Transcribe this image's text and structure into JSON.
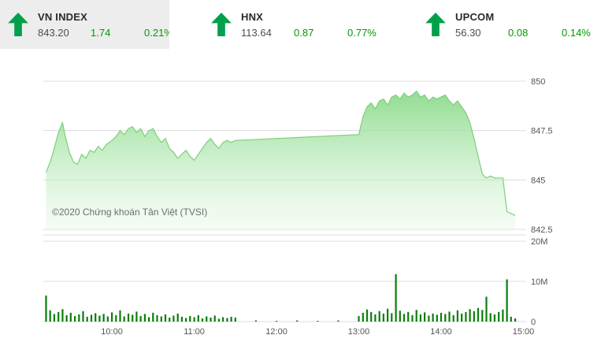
{
  "tickers": [
    {
      "name": "VN INDEX",
      "value": "843.20",
      "change": "1.74",
      "percent": "0.21%"
    },
    {
      "name": "HNX",
      "value": "113.64",
      "change": "0.87",
      "percent": "0.77%"
    },
    {
      "name": "UPCOM",
      "value": "56.30",
      "change": "0.08",
      "percent": "0.14%"
    }
  ],
  "chart": {
    "copyright": "©2020 Chứng khoán Tân Việt (TVSI)"
  },
  "colors": {
    "up_arrow": "#00a04a",
    "change_text": "#009900",
    "value_text": "#4d4d4d",
    "ticker_bg": "#ededed",
    "grid": "#dcdcdc",
    "axis_text": "#555555",
    "area_line": "#7ccf7c",
    "area_fill_top": "#84d884",
    "area_fill_bottom": "#e9f9e9",
    "volume_bar": "#0b7d0b"
  },
  "chart_data": {
    "type": "area",
    "title": "",
    "xlabel": "",
    "ylabel": "",
    "legend": "none",
    "grid": "horizontal",
    "x_domain": [
      "09:10",
      "15:02"
    ],
    "x_ticks": [
      "10:00",
      "11:00",
      "12:00",
      "13:00",
      "14:00",
      "15:00"
    ],
    "price": {
      "name": "VN INDEX intraday",
      "ylim": [
        842.5,
        850
      ],
      "y_ticks": [
        [
          850,
          "850"
        ],
        [
          847.5,
          "847.5"
        ],
        [
          845,
          "845"
        ],
        [
          842.5,
          "842.5"
        ]
      ],
      "points": [
        [
          "09:12",
          845.4
        ],
        [
          "09:15",
          845.9
        ],
        [
          "09:18",
          846.6
        ],
        [
          "09:21",
          847.4
        ],
        [
          "09:24",
          847.9
        ],
        [
          "09:26",
          847.2
        ],
        [
          "09:29",
          846.4
        ],
        [
          "09:32",
          845.9
        ],
        [
          "09:35",
          845.8
        ],
        [
          "09:38",
          846.3
        ],
        [
          "09:41",
          846.1
        ],
        [
          "09:44",
          846.5
        ],
        [
          "09:47",
          846.4
        ],
        [
          "09:50",
          846.7
        ],
        [
          "09:53",
          846.5
        ],
        [
          "09:56",
          846.8
        ],
        [
          "10:00",
          847.0
        ],
        [
          "10:03",
          847.2
        ],
        [
          "10:06",
          847.5
        ],
        [
          "10:09",
          847.3
        ],
        [
          "10:12",
          847.6
        ],
        [
          "10:15",
          847.7
        ],
        [
          "10:18",
          847.4
        ],
        [
          "10:21",
          847.6
        ],
        [
          "10:24",
          847.2
        ],
        [
          "10:27",
          847.5
        ],
        [
          "10:30",
          847.6
        ],
        [
          "10:33",
          847.2
        ],
        [
          "10:36",
          846.9
        ],
        [
          "10:39",
          847.1
        ],
        [
          "10:42",
          846.6
        ],
        [
          "10:45",
          846.4
        ],
        [
          "10:48",
          846.1
        ],
        [
          "10:51",
          846.3
        ],
        [
          "10:54",
          846.5
        ],
        [
          "10:57",
          846.2
        ],
        [
          "11:00",
          846.0
        ],
        [
          "11:03",
          846.3
        ],
        [
          "11:06",
          846.6
        ],
        [
          "11:09",
          846.9
        ],
        [
          "11:12",
          847.1
        ],
        [
          "11:15",
          846.8
        ],
        [
          "11:18",
          846.6
        ],
        [
          "11:21",
          846.9
        ],
        [
          "11:24",
          847.0
        ],
        [
          "11:27",
          846.9
        ],
        [
          "11:30",
          847.0
        ],
        [
          "12:00",
          847.1
        ],
        [
          "12:30",
          847.2
        ],
        [
          "13:00",
          847.3
        ],
        [
          "13:03",
          848.2
        ],
        [
          "13:06",
          848.7
        ],
        [
          "13:09",
          848.9
        ],
        [
          "13:12",
          848.6
        ],
        [
          "13:15",
          849.0
        ],
        [
          "13:18",
          849.1
        ],
        [
          "13:21",
          848.8
        ],
        [
          "13:24",
          849.2
        ],
        [
          "13:27",
          849.3
        ],
        [
          "13:30",
          849.1
        ],
        [
          "13:33",
          849.4
        ],
        [
          "13:36",
          849.2
        ],
        [
          "13:39",
          849.3
        ],
        [
          "13:42",
          849.5
        ],
        [
          "13:45",
          849.2
        ],
        [
          "13:48",
          849.3
        ],
        [
          "13:51",
          849.0
        ],
        [
          "13:54",
          849.2
        ],
        [
          "13:57",
          849.1
        ],
        [
          "14:00",
          849.2
        ],
        [
          "14:03",
          849.3
        ],
        [
          "14:06",
          849.0
        ],
        [
          "14:09",
          848.8
        ],
        [
          "14:12",
          849.0
        ],
        [
          "14:15",
          848.7
        ],
        [
          "14:18",
          848.4
        ],
        [
          "14:21",
          847.9
        ],
        [
          "14:24",
          847.1
        ],
        [
          "14:27",
          846.2
        ],
        [
          "14:30",
          845.3
        ],
        [
          "14:33",
          845.1
        ],
        [
          "14:36",
          845.2
        ],
        [
          "14:39",
          845.1
        ],
        [
          "14:42",
          845.1
        ],
        [
          "14:45",
          845.1
        ],
        [
          "14:48",
          843.4
        ],
        [
          "14:51",
          843.3
        ],
        [
          "14:54",
          843.2
        ]
      ]
    },
    "volume": {
      "name": "Volume",
      "unit": "millions",
      "ylim": [
        0,
        20
      ],
      "y_ticks": [
        [
          20,
          "20M"
        ],
        [
          10,
          "10M"
        ],
        [
          0,
          "0"
        ]
      ],
      "points": [
        [
          "09:12",
          6.5
        ],
        [
          "09:15",
          2.8
        ],
        [
          "09:18",
          1.9
        ],
        [
          "09:21",
          2.4
        ],
        [
          "09:24",
          3.1
        ],
        [
          "09:27",
          1.6
        ],
        [
          "09:30",
          2.2
        ],
        [
          "09:33",
          1.4
        ],
        [
          "09:36",
          1.8
        ],
        [
          "09:39",
          2.6
        ],
        [
          "09:42",
          1.2
        ],
        [
          "09:45",
          1.7
        ],
        [
          "09:48",
          2.1
        ],
        [
          "09:51",
          1.5
        ],
        [
          "09:54",
          1.9
        ],
        [
          "09:57",
          1.3
        ],
        [
          "10:00",
          2.3
        ],
        [
          "10:03",
          1.6
        ],
        [
          "10:06",
          2.8
        ],
        [
          "10:09",
          1.3
        ],
        [
          "10:12",
          2.0
        ],
        [
          "10:15",
          1.7
        ],
        [
          "10:18",
          2.5
        ],
        [
          "10:21",
          1.4
        ],
        [
          "10:24",
          1.9
        ],
        [
          "10:27",
          1.1
        ],
        [
          "10:30",
          2.2
        ],
        [
          "10:33",
          1.6
        ],
        [
          "10:36",
          1.3
        ],
        [
          "10:39",
          1.8
        ],
        [
          "10:42",
          1.0
        ],
        [
          "10:45",
          1.5
        ],
        [
          "10:48",
          2.0
        ],
        [
          "10:51",
          1.2
        ],
        [
          "10:54",
          0.9
        ],
        [
          "10:57",
          1.4
        ],
        [
          "11:00",
          1.1
        ],
        [
          "11:03",
          1.6
        ],
        [
          "11:06",
          0.8
        ],
        [
          "11:09",
          1.3
        ],
        [
          "11:12",
          1.0
        ],
        [
          "11:15",
          1.5
        ],
        [
          "11:18",
          0.7
        ],
        [
          "11:21",
          1.1
        ],
        [
          "11:24",
          0.9
        ],
        [
          "11:27",
          1.2
        ],
        [
          "11:30",
          1.0
        ],
        [
          "11:45",
          0.3
        ],
        [
          "12:00",
          0.2
        ],
        [
          "12:15",
          0.3
        ],
        [
          "12:30",
          0.2
        ],
        [
          "12:45",
          0.3
        ],
        [
          "13:00",
          1.4
        ],
        [
          "13:03",
          2.2
        ],
        [
          "13:06",
          3.0
        ],
        [
          "13:09",
          2.4
        ],
        [
          "13:12",
          1.8
        ],
        [
          "13:15",
          2.6
        ],
        [
          "13:18",
          2.0
        ],
        [
          "13:21",
          3.2
        ],
        [
          "13:24",
          2.1
        ],
        [
          "13:27",
          11.8
        ],
        [
          "13:30",
          2.7
        ],
        [
          "13:33",
          1.9
        ],
        [
          "13:36",
          2.4
        ],
        [
          "13:39",
          1.6
        ],
        [
          "13:42",
          2.9
        ],
        [
          "13:45",
          1.8
        ],
        [
          "13:48",
          2.3
        ],
        [
          "13:51",
          1.5
        ],
        [
          "13:54",
          2.0
        ],
        [
          "13:57",
          1.7
        ],
        [
          "14:00",
          2.2
        ],
        [
          "14:03",
          1.9
        ],
        [
          "14:06",
          2.5
        ],
        [
          "14:09",
          1.6
        ],
        [
          "14:12",
          2.8
        ],
        [
          "14:15",
          2.0
        ],
        [
          "14:18",
          2.4
        ],
        [
          "14:21",
          3.1
        ],
        [
          "14:24",
          2.6
        ],
        [
          "14:27",
          3.4
        ],
        [
          "14:30",
          2.9
        ],
        [
          "14:33",
          6.2
        ],
        [
          "14:36",
          2.1
        ],
        [
          "14:39",
          1.8
        ],
        [
          "14:42",
          2.4
        ],
        [
          "14:45",
          3.0
        ],
        [
          "14:48",
          10.5
        ],
        [
          "14:51",
          1.2
        ],
        [
          "14:54",
          0.8
        ]
      ]
    }
  }
}
